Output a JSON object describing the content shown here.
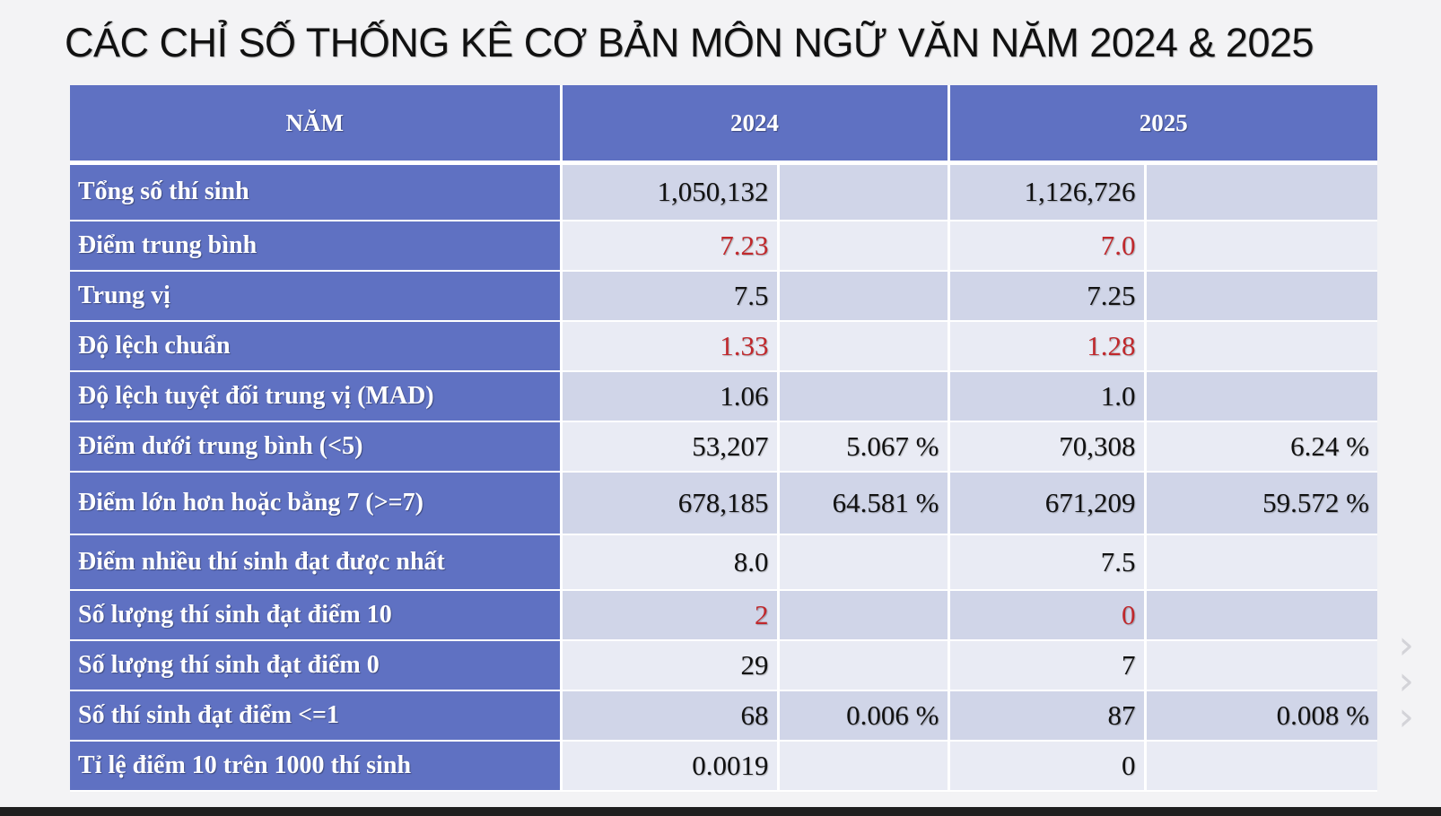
{
  "title": "CÁC CHỈ SỐ THỐNG KÊ CƠ BẢN MÔN NGỮ VĂN NĂM 2024 & 2025",
  "header": {
    "label": "NĂM",
    "year1": "2024",
    "year2": "2025"
  },
  "rows": [
    {
      "label": "Tổng số thí sinh",
      "v2024": "1,050,132",
      "p2024": "",
      "v2025": "1,126,726",
      "p2025": ""
    },
    {
      "label": "Điểm trung bình",
      "v2024": "7.23",
      "p2024": "",
      "v2025": "7.0",
      "p2025": ""
    },
    {
      "label": "Trung vị",
      "v2024": "7.5",
      "p2024": "",
      "v2025": "7.25",
      "p2025": ""
    },
    {
      "label": "Độ lệch chuẩn",
      "v2024": "1.33",
      "p2024": "",
      "v2025": "1.28",
      "p2025": ""
    },
    {
      "label": "Độ lệch tuyệt đối trung vị (MAD)",
      "v2024": "1.06",
      "p2024": "",
      "v2025": "1.0",
      "p2025": ""
    },
    {
      "label": "Điểm dưới trung bình (<5)",
      "v2024": "53,207",
      "p2024": "5.067 %",
      "v2025": "70,308",
      "p2025": "6.24 %"
    },
    {
      "label": "Điểm lớn hơn hoặc bằng 7 (>=7)",
      "v2024": "678,185",
      "p2024": "64.581 %",
      "v2025": "671,209",
      "p2025": "59.572 %"
    },
    {
      "label": "Điểm nhiều thí sinh đạt được nhất",
      "v2024": "8.0",
      "p2024": "",
      "v2025": "7.5",
      "p2025": ""
    },
    {
      "label": "Số lượng thí sinh đạt điểm 10",
      "v2024": "2",
      "p2024": "",
      "v2025": "0",
      "p2025": ""
    },
    {
      "label": "Số lượng thí sinh đạt điểm 0",
      "v2024": "29",
      "p2024": "",
      "v2025": "7",
      "p2025": ""
    },
    {
      "label": "Số thí sinh đạt điểm <=1",
      "v2024": "68",
      "p2024": "0.006 %",
      "v2025": "87",
      "p2025": "0.008 %"
    },
    {
      "label": "Tỉ lệ điểm 10 trên 1000 thí sinh",
      "v2024": "0.0019",
      "p2024": "",
      "v2025": "0",
      "p2025": ""
    }
  ],
  "colors": {
    "header_bg": "#5f71c2",
    "row_odd": "#d0d5e8",
    "row_even": "#e9ebf4",
    "highlight": "#c0282c"
  }
}
